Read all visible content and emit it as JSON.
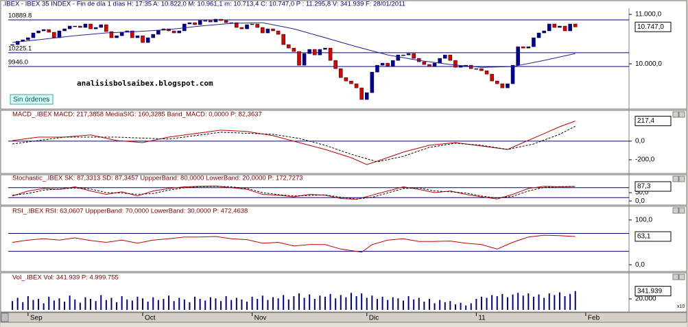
{
  "watermark": "analisisbolsaibex.blogspot.com",
  "orders_button": "Sin órdenes",
  "x_axis": {
    "xlim": [
      -0.8,
      118.3
    ],
    "xticks": [
      {
        "value": 3,
        "label": "Sep"
      },
      {
        "value": 25,
        "label": "Oct"
      },
      {
        "value": 46,
        "label": "Nov"
      },
      {
        "value": 68,
        "label": "Dic"
      },
      {
        "value": 89,
        "label": "11"
      },
      {
        "value": 110,
        "label": "Feb"
      }
    ]
  },
  "chart_data": [
    {
      "type": "candlestick",
      "title": ".IBEX - IBEX 35 INDEX - Fin de día 1 días H: 17:35  A: 10.822,0  M: 10.961,1  m: 10.713,4  C: 10.747,0  P : 11.295,8  V: 341.939  F: 28/01/2011",
      "ylim": [
        9100,
        11125
      ],
      "yticks": [
        {
          "value": 11000,
          "label": "11.000,0"
        },
        {
          "value": 10000,
          "label": "10.000,0"
        }
      ],
      "hlines": [
        {
          "value": 10889.8,
          "label": "10889.8"
        },
        {
          "value": 10225.1,
          "label": "10225.1"
        },
        {
          "value": 9946,
          "label": "9946.0"
        }
      ],
      "up_color": "#0000a0",
      "down_color": "#e00000",
      "close": [
        10389,
        10458,
        10486,
        10528,
        10625,
        10667,
        10694,
        10639,
        10528,
        10667,
        10708,
        10764,
        10764,
        10736,
        10806,
        10708,
        10736,
        10792,
        10653,
        10528,
        10569,
        10639,
        10667,
        10528,
        10569,
        10431,
        10528,
        10597,
        10681,
        10708,
        10667,
        10625,
        10667,
        10806,
        10833,
        10792,
        10875,
        10875,
        10847,
        10903,
        10875,
        10833,
        10833,
        10736,
        10708,
        10792,
        10806,
        10736,
        10625,
        10708,
        10667,
        10597,
        10389,
        10319,
        10250,
        9972,
        10208,
        10292,
        10180,
        10292,
        10319,
        10069,
        9903,
        9722,
        9653,
        9597,
        9514,
        9278,
        9417,
        9833,
        9972,
        10014,
        9958,
        10069,
        10180,
        10180,
        10208,
        10111,
        10042,
        9986,
        9944,
        10014,
        10111,
        10180,
        10069,
        9930,
        9958,
        9972,
        9903,
        9903,
        9861,
        9792,
        9653,
        9597,
        9514,
        9597,
        9972,
        10347,
        10319,
        10347,
        10528,
        10625,
        10667,
        10806,
        10736,
        10764,
        10667,
        10806,
        10747
      ],
      "last_label": "10.747,0",
      "series": [
        {
          "color": "#2020a0",
          "x": [
            0,
            6,
            12,
            18,
            24,
            30,
            36,
            42,
            48,
            54,
            60,
            66,
            72,
            78,
            84,
            90,
            96,
            102,
            108
          ],
          "values": [
            10431,
            10500,
            10569,
            10625,
            10653,
            10694,
            10764,
            10819,
            10833,
            10708,
            10528,
            10347,
            10180,
            10069,
            9986,
            9930,
            9944,
            10069,
            10208
          ]
        }
      ]
    },
    {
      "type": "line",
      "title": "MACD_.IBEX  MACD: 217,3858  MediaSIG: 160,3285  Band_MACD: 0,0000  P: 82,3637",
      "ylim": [
        -340,
        265
      ],
      "yticks": [
        {
          "value": 0,
          "label": "0,0"
        },
        {
          "value": -200,
          "label": "-200,0"
        }
      ],
      "hlines": [
        {
          "value": 0
        }
      ],
      "last_label": "217,4",
      "series": [
        {
          "color": "#c00000",
          "x": [
            0,
            5,
            10,
            15,
            20,
            25,
            30,
            35,
            40,
            45,
            50,
            55,
            60,
            65,
            68,
            70,
            75,
            80,
            85,
            90,
            95,
            98,
            102,
            105,
            108
          ],
          "values": [
            7,
            44,
            44,
            67,
            7,
            -15,
            44,
            81,
            118,
            104,
            59,
            -15,
            -89,
            -178,
            -252,
            -215,
            -118,
            -44,
            -15,
            -52,
            -89,
            -15,
            81,
            155,
            217.3858
          ]
        },
        {
          "color": "#000000",
          "dash": true,
          "x": [
            0,
            10,
            20,
            30,
            40,
            50,
            55,
            60,
            65,
            70,
            75,
            80,
            85,
            90,
            95,
            100,
            105,
            108
          ],
          "values": [
            -30,
            44,
            44,
            22,
            96,
            74,
            30,
            -44,
            -141,
            -222,
            -163,
            -67,
            -22,
            -44,
            -89,
            -30,
            74,
            160.3285
          ]
        }
      ]
    },
    {
      "type": "line",
      "title": "Stochastic_.IBEX  SK: 87,3313  SD: 87,3457  UppperBand: 80,0000  LowerBand: 20,0000  P: 172,7273",
      "ylim": [
        -20,
        112
      ],
      "yticks": [
        {
          "value": 50,
          "label": "50,0"
        },
        {
          "value": 0,
          "label": "0,0"
        }
      ],
      "hlines": [
        {
          "value": 80
        },
        {
          "value": 20
        }
      ],
      "last_label": "87,3",
      "series": [
        {
          "color": "#c00000",
          "x": [
            0,
            3,
            6,
            9,
            12,
            15,
            18,
            21,
            24,
            27,
            30,
            33,
            36,
            39,
            42,
            45,
            48,
            51,
            54,
            57,
            60,
            63,
            66,
            69,
            72,
            75,
            78,
            81,
            84,
            87,
            90,
            93,
            96,
            99,
            102,
            105,
            108
          ],
          "values": [
            30,
            60,
            75,
            70,
            85,
            60,
            40,
            55,
            30,
            60,
            75,
            85,
            88,
            90,
            80,
            70,
            40,
            35,
            25,
            40,
            35,
            15,
            10,
            35,
            60,
            85,
            70,
            50,
            60,
            40,
            25,
            12,
            40,
            75,
            88,
            85,
            87.3313
          ]
        },
        {
          "color": "#000000",
          "dash": true,
          "x": [
            0,
            3,
            6,
            9,
            12,
            15,
            18,
            21,
            24,
            27,
            30,
            33,
            36,
            39,
            42,
            45,
            48,
            51,
            54,
            57,
            60,
            63,
            66,
            69,
            72,
            75,
            78,
            81,
            84,
            87,
            90,
            93,
            96,
            99,
            102,
            105,
            108
          ],
          "values": [
            35,
            45,
            65,
            72,
            78,
            72,
            50,
            48,
            40,
            45,
            65,
            80,
            86,
            88,
            85,
            75,
            50,
            38,
            30,
            33,
            37,
            22,
            12,
            22,
            48,
            75,
            78,
            60,
            55,
            48,
            30,
            18,
            28,
            60,
            82,
            86,
            87.3457
          ]
        }
      ]
    },
    {
      "type": "line",
      "title": "RSI_.IBEX  RSI: 63,0607  UppperBand: 70,0000  LowerBand: 30,0000  P: 472,4638",
      "ylim": [
        -15,
        112
      ],
      "yticks": [
        {
          "value": 100,
          "label": "100,0"
        },
        {
          "value": 0,
          "label": "0,0"
        }
      ],
      "hlines": [
        {
          "value": 70
        },
        {
          "value": 30
        }
      ],
      "last_label": "63,1",
      "series": [
        {
          "color": "#c00000",
          "x": [
            0,
            3,
            6,
            9,
            12,
            15,
            18,
            21,
            24,
            27,
            30,
            33,
            36,
            39,
            42,
            45,
            48,
            51,
            54,
            57,
            60,
            63,
            66,
            67,
            69,
            72,
            75,
            78,
            81,
            84,
            87,
            90,
            93,
            96,
            99,
            102,
            105,
            108
          ],
          "values": [
            50,
            55,
            58,
            55,
            60,
            54,
            50,
            55,
            48,
            55,
            58,
            62,
            62,
            63,
            58,
            56,
            48,
            50,
            42,
            45,
            45,
            35,
            30,
            28,
            45,
            55,
            58,
            52,
            52,
            53,
            48,
            45,
            35,
            50,
            62,
            66,
            65,
            63.0607
          ]
        }
      ]
    },
    {
      "type": "bar",
      "title": "Vol_.IBEX  Vol: 341.939  P: 4.999.755",
      "ylim": [
        0,
        52500
      ],
      "yticks": [
        {
          "value": 20000,
          "label": "20.000"
        }
      ],
      "unit_label": "x10",
      "color": "#00008b",
      "values": [
        16000,
        22000,
        14000,
        25000,
        18000,
        20000,
        12000,
        24000,
        17000,
        21000,
        15000,
        26000,
        19000,
        13000,
        23000,
        20000,
        16000,
        27000,
        18000,
        22000,
        14000,
        25000,
        19000,
        17000,
        24000,
        21000,
        15000,
        23000,
        18000,
        20000,
        26000,
        16000,
        22000,
        19000,
        14000,
        24000,
        20000,
        17000,
        23000,
        21000,
        16000,
        25000,
        18000,
        22000,
        19000,
        15000,
        24000,
        20000,
        26000,
        18000,
        23000,
        21000,
        27000,
        19000,
        25000,
        30000,
        22000,
        28000,
        20000,
        26000,
        24000,
        29000,
        21000,
        27000,
        23000,
        31000,
        25000,
        30000,
        22000,
        26000,
        20000,
        24000,
        18000,
        23000,
        21000,
        17000,
        25000,
        19000,
        22000,
        15000,
        20000,
        12000,
        18000,
        14000,
        16000,
        10000,
        13000,
        8000,
        12000,
        20000,
        24000,
        22000,
        27000,
        25000,
        29000,
        23000,
        28000,
        31000,
        26000,
        30000,
        24000,
        28000,
        22000,
        30000,
        27000,
        32000,
        25000,
        29000,
        34193.9
      ],
      "last_label": "341.939"
    }
  ]
}
